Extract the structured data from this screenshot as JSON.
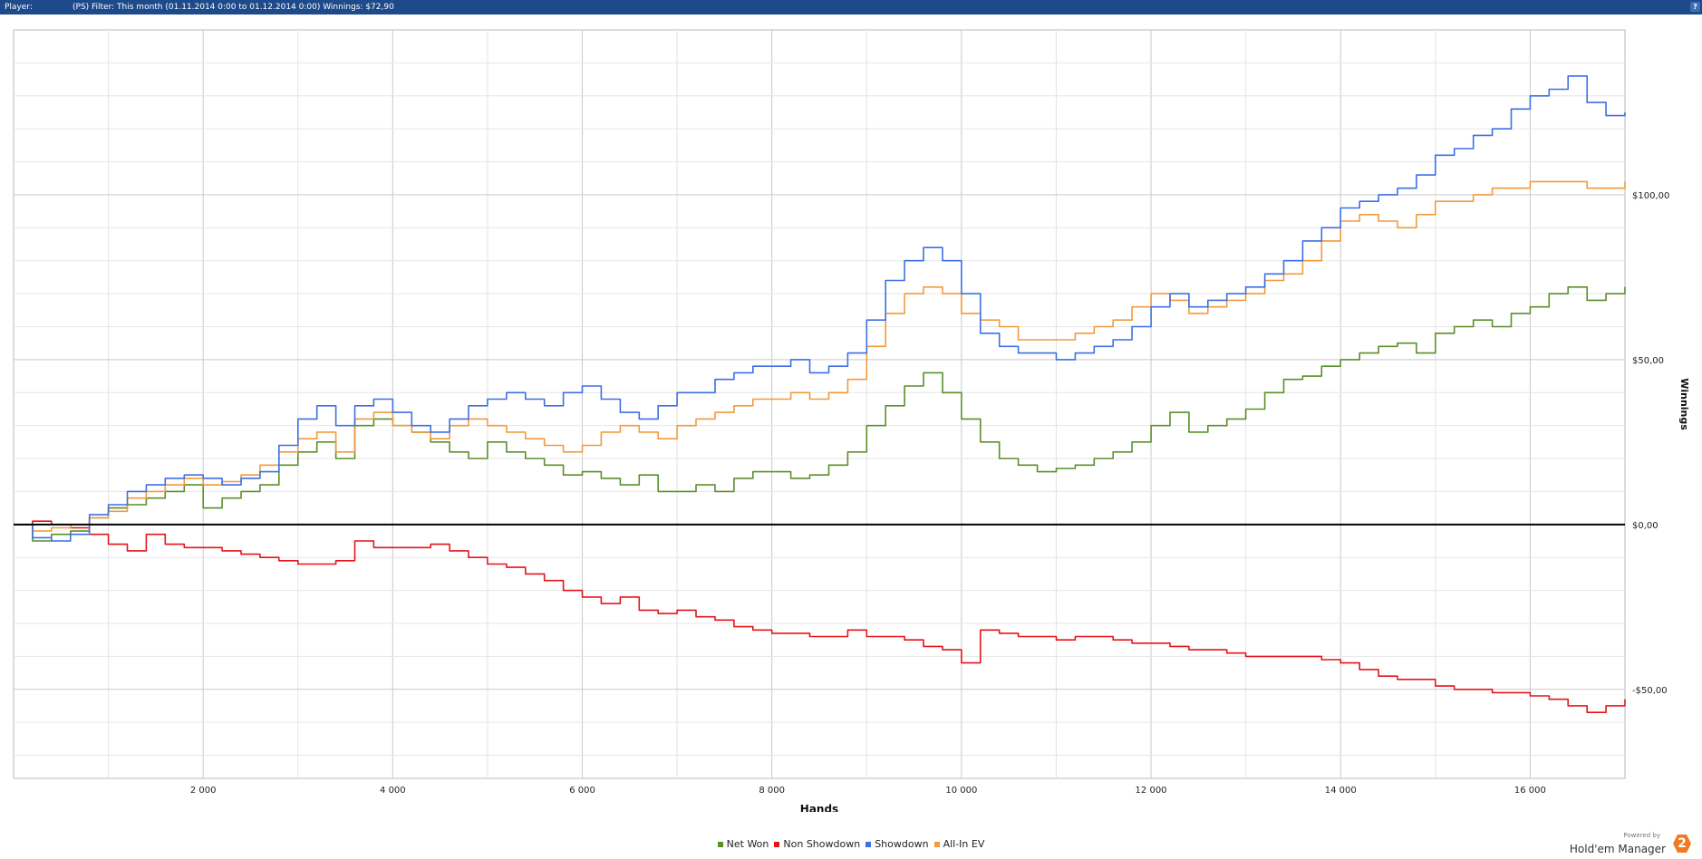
{
  "header": {
    "player_label": "Player:",
    "filter_text": "(PS) Filter: This month (01.11.2014 0:00 to 01.12.2014 0:00) Winnings: $72,90",
    "help_icon": "?"
  },
  "brand": {
    "powered": "Powered by",
    "name": "Hold'em Manager",
    "badge": "2"
  },
  "chart_data": {
    "type": "line",
    "xlabel": "Hands",
    "ylabel": "Winnings",
    "xlim": [
      0,
      17000
    ],
    "ylim": [
      -77,
      150
    ],
    "x_ticks": [
      2000,
      4000,
      6000,
      8000,
      10000,
      12000,
      14000,
      16000
    ],
    "x_tick_labels": [
      "2 000",
      "4 000",
      "6 000",
      "8 000",
      "10 000",
      "12 000",
      "14 000",
      "16 000"
    ],
    "y_ticks": [
      -50,
      0,
      50,
      100
    ],
    "y_tick_labels": [
      "-$50,00",
      "$0,00",
      "$50,00",
      "$100,00"
    ],
    "grid": true,
    "legend_position": "bottom",
    "series": [
      {
        "name": "Net Won",
        "color": "#5a8f29",
        "x": [
          0,
          200,
          400,
          600,
          800,
          1000,
          1200,
          1400,
          1600,
          1800,
          2000,
          2200,
          2400,
          2600,
          2800,
          3000,
          3200,
          3400,
          3600,
          3800,
          4000,
          4200,
          4400,
          4600,
          4800,
          5000,
          5200,
          5400,
          5600,
          5800,
          6000,
          6200,
          6400,
          6600,
          6800,
          7000,
          7200,
          7400,
          7600,
          7800,
          8000,
          8200,
          8400,
          8600,
          8800,
          9000,
          9200,
          9400,
          9600,
          9800,
          10000,
          10200,
          10400,
          10600,
          10800,
          11000,
          11200,
          11400,
          11600,
          11800,
          12000,
          12200,
          12400,
          12600,
          12800,
          13000,
          13200,
          13400,
          13600,
          13800,
          14000,
          14200,
          14400,
          14600,
          14800,
          15000,
          15200,
          15400,
          15600,
          15800,
          16000,
          16200,
          16400,
          16600,
          16800,
          17000
        ],
        "y": [
          0,
          -5,
          -3,
          -2,
          2,
          5,
          6,
          8,
          10,
          12,
          5,
          8,
          10,
          12,
          18,
          22,
          25,
          20,
          30,
          32,
          30,
          28,
          25,
          22,
          20,
          25,
          22,
          20,
          18,
          15,
          16,
          14,
          12,
          15,
          10,
          10,
          12,
          10,
          14,
          16,
          16,
          14,
          15,
          18,
          22,
          30,
          36,
          42,
          46,
          40,
          32,
          25,
          20,
          18,
          16,
          17,
          18,
          20,
          22,
          25,
          30,
          34,
          28,
          30,
          32,
          35,
          40,
          44,
          45,
          48,
          50,
          52,
          54,
          55,
          52,
          58,
          60,
          62,
          60,
          64,
          66,
          70,
          72,
          68,
          70,
          72
        ]
      },
      {
        "name": "Non Showdown",
        "color": "#e5141b",
        "x": [
          0,
          200,
          400,
          600,
          800,
          1000,
          1200,
          1400,
          1600,
          1800,
          2000,
          2200,
          2400,
          2600,
          2800,
          3000,
          3200,
          3400,
          3600,
          3800,
          4000,
          4200,
          4400,
          4600,
          4800,
          5000,
          5200,
          5400,
          5600,
          5800,
          6000,
          6200,
          6400,
          6600,
          6800,
          7000,
          7200,
          7400,
          7600,
          7800,
          8000,
          8200,
          8400,
          8600,
          8800,
          9000,
          9200,
          9400,
          9600,
          9800,
          10000,
          10200,
          10400,
          10600,
          10800,
          11000,
          11200,
          11400,
          11600,
          11800,
          12000,
          12200,
          12400,
          12600,
          12800,
          13000,
          13200,
          13400,
          13600,
          13800,
          14000,
          14200,
          14400,
          14600,
          14800,
          15000,
          15200,
          15400,
          15600,
          15800,
          16000,
          16200,
          16400,
          16600,
          16800,
          17000
        ],
        "y": [
          0,
          1,
          0,
          -1,
          -3,
          -6,
          -8,
          -3,
          -6,
          -7,
          -7,
          -8,
          -9,
          -10,
          -11,
          -12,
          -12,
          -11,
          -5,
          -7,
          -7,
          -7,
          -6,
          -8,
          -10,
          -12,
          -13,
          -15,
          -17,
          -20,
          -22,
          -24,
          -22,
          -26,
          -27,
          -26,
          -28,
          -29,
          -31,
          -32,
          -33,
          -33,
          -34,
          -34,
          -32,
          -34,
          -34,
          -35,
          -37,
          -38,
          -42,
          -32,
          -33,
          -34,
          -34,
          -35,
          -34,
          -34,
          -35,
          -36,
          -36,
          -37,
          -38,
          -38,
          -39,
          -40,
          -40,
          -40,
          -40,
          -41,
          -42,
          -44,
          -46,
          -47,
          -47,
          -49,
          -50,
          -50,
          -51,
          -51,
          -52,
          -53,
          -55,
          -57,
          -55,
          -53
        ]
      },
      {
        "name": "Showdown",
        "color": "#3d6fe5",
        "x": [
          0,
          200,
          400,
          600,
          800,
          1000,
          1200,
          1400,
          1600,
          1800,
          2000,
          2200,
          2400,
          2600,
          2800,
          3000,
          3200,
          3400,
          3600,
          3800,
          4000,
          4200,
          4400,
          4600,
          4800,
          5000,
          5200,
          5400,
          5600,
          5800,
          6000,
          6200,
          6400,
          6600,
          6800,
          7000,
          7200,
          7400,
          7600,
          7800,
          8000,
          8200,
          8400,
          8600,
          8800,
          9000,
          9200,
          9400,
          9600,
          9800,
          10000,
          10200,
          10400,
          10600,
          10800,
          11000,
          11200,
          11400,
          11600,
          11800,
          12000,
          12200,
          12400,
          12600,
          12800,
          13000,
          13200,
          13400,
          13600,
          13800,
          14000,
          14200,
          14400,
          14600,
          14800,
          15000,
          15200,
          15400,
          15600,
          15800,
          16000,
          16200,
          16400,
          16600,
          16800,
          17000
        ],
        "y": [
          0,
          -4,
          -5,
          -3,
          3,
          6,
          10,
          12,
          14,
          15,
          14,
          12,
          14,
          16,
          24,
          32,
          36,
          30,
          36,
          38,
          34,
          30,
          28,
          32,
          36,
          38,
          40,
          38,
          36,
          40,
          42,
          38,
          34,
          32,
          36,
          40,
          40,
          44,
          46,
          48,
          48,
          50,
          46,
          48,
          52,
          62,
          74,
          80,
          84,
          80,
          70,
          58,
          54,
          52,
          52,
          50,
          52,
          54,
          56,
          60,
          66,
          70,
          66,
          68,
          70,
          72,
          76,
          80,
          86,
          90,
          96,
          98,
          100,
          102,
          106,
          112,
          114,
          118,
          120,
          126,
          130,
          132,
          136,
          128,
          124,
          125
        ]
      },
      {
        "name": "All-In EV",
        "color": "#f39a3a",
        "x": [
          0,
          200,
          400,
          600,
          800,
          1000,
          1200,
          1400,
          1600,
          1800,
          2000,
          2200,
          2400,
          2600,
          2800,
          3000,
          3200,
          3400,
          3600,
          3800,
          4000,
          4200,
          4400,
          4600,
          4800,
          5000,
          5200,
          5400,
          5600,
          5800,
          6000,
          6200,
          6400,
          6600,
          6800,
          7000,
          7200,
          7400,
          7600,
          7800,
          8000,
          8200,
          8400,
          8600,
          8800,
          9000,
          9200,
          9400,
          9600,
          9800,
          10000,
          10200,
          10400,
          10600,
          10800,
          11000,
          11200,
          11400,
          11600,
          11800,
          12000,
          12200,
          12400,
          12600,
          12800,
          13000,
          13200,
          13400,
          13600,
          13800,
          14000,
          14200,
          14400,
          14600,
          14800,
          15000,
          15200,
          15400,
          15600,
          15800,
          16000,
          16200,
          16400,
          16600,
          16800,
          17000
        ],
        "y": [
          0,
          -2,
          -1,
          0,
          2,
          4,
          8,
          10,
          12,
          14,
          12,
          13,
          15,
          18,
          22,
          26,
          28,
          22,
          32,
          34,
          30,
          28,
          26,
          30,
          32,
          30,
          28,
          26,
          24,
          22,
          24,
          28,
          30,
          28,
          26,
          30,
          32,
          34,
          36,
          38,
          38,
          40,
          38,
          40,
          44,
          54,
          64,
          70,
          72,
          70,
          64,
          62,
          60,
          56,
          56,
          56,
          58,
          60,
          62,
          66,
          70,
          68,
          64,
          66,
          68,
          70,
          74,
          76,
          80,
          86,
          92,
          94,
          92,
          90,
          94,
          98,
          98,
          100,
          102,
          102,
          104,
          104,
          104,
          102,
          102,
          104
        ]
      }
    ]
  }
}
